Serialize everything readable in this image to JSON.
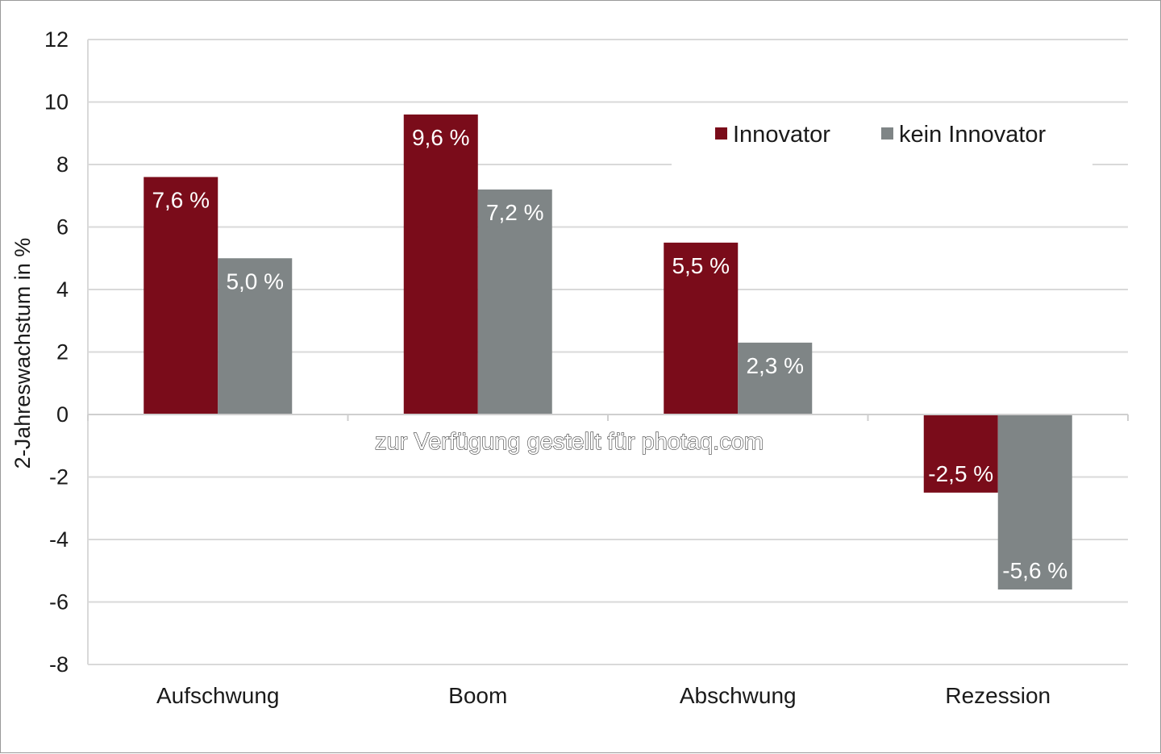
{
  "chart_data": {
    "type": "bar",
    "ylabel": "2-Jahreswachstum in %",
    "ylim": [
      -8,
      12
    ],
    "yticks": [
      "12",
      "10",
      "8",
      "6",
      "4",
      "2",
      "0",
      "-2",
      "-4",
      "-6",
      "-8"
    ],
    "ytick_values": [
      12,
      10,
      8,
      6,
      4,
      2,
      0,
      -2,
      -4,
      -6,
      -8
    ],
    "categories": [
      "Aufschwung",
      "Boom",
      "Abschwung",
      "Rezession"
    ],
    "series": [
      {
        "name": "Innovator",
        "color": "#7a0c1a",
        "values": [
          7.6,
          9.6,
          5.5,
          -2.5
        ],
        "labels": [
          "7,6 %",
          "9,6 %",
          "5,5 %",
          "-2,5 %"
        ]
      },
      {
        "name": "kein Innovator",
        "color": "#7f8586",
        "values": [
          5.0,
          7.2,
          2.3,
          -5.6
        ],
        "labels": [
          "5,0 %",
          "7,2 %",
          "2,3 %",
          "-5,6 %"
        ]
      }
    ],
    "grid": true,
    "legend_position": "top-right"
  },
  "watermark": "zur Verfügung gestellt für photaq.com"
}
